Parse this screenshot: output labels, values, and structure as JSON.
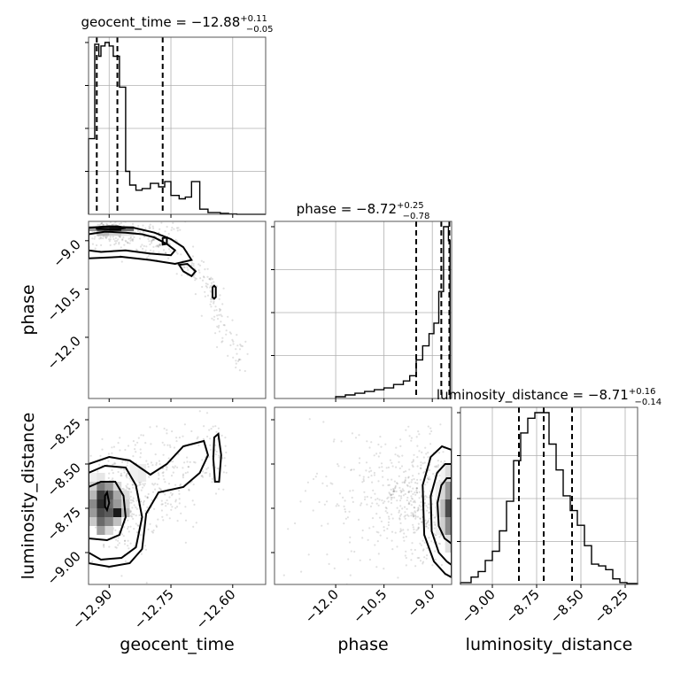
{
  "chart_data": {
    "type": "corner",
    "parameters": [
      "geocent_time",
      "phase",
      "luminosity_distance"
    ],
    "axis_labels": {
      "geocent_time": "geocent_time",
      "phase": "phase",
      "luminosity_distance": "luminosity_distance"
    },
    "ranges": {
      "geocent_time": [
        -12.95,
        -12.52
      ],
      "phase": [
        -13.9,
        -8.4
      ],
      "luminosity_distance": [
        -9.18,
        -8.18
      ]
    },
    "ticks": {
      "geocent_time": {
        "values": [
          -12.9,
          -12.75,
          -12.6
        ],
        "labels": [
          "−12.90",
          "−12.75",
          "−12.60"
        ]
      },
      "phase": {
        "values": [
          -12.0,
          -10.5,
          -9.0
        ],
        "labels": [
          "−12.0",
          "−10.5",
          "−9.0"
        ]
      },
      "luminosity_distance": {
        "values": [
          -9.0,
          -8.75,
          -8.5,
          -8.25
        ],
        "labels": [
          "−9.00",
          "−8.75",
          "−8.50",
          "−8.25"
        ]
      }
    },
    "titles": [
      {
        "param": "geocent_time",
        "main": "geocent_time = −12.88",
        "plus": "+0.11",
        "minus": "−0.05"
      },
      {
        "param": "phase",
        "main": "phase = −8.72",
        "plus": "+0.25",
        "minus": "−0.78"
      },
      {
        "param": "luminosity_distance",
        "main": "luminosity_distance = −8.71",
        "plus": "+0.16",
        "minus": "−0.14"
      }
    ],
    "quantiles": {
      "geocent_time": [
        -12.93,
        -12.88,
        -12.77
      ],
      "phase": [
        -9.5,
        -8.72,
        -8.47
      ],
      "luminosity_distance": [
        -8.85,
        -8.71,
        -8.55
      ]
    },
    "histograms": {
      "geocent_time": {
        "edges": [
          -12.95,
          -12.935,
          -12.925,
          -12.92,
          -12.91,
          -12.9,
          -12.89,
          -12.875,
          -12.86,
          -12.85,
          -12.835,
          -12.82,
          -12.8,
          -12.78,
          -12.765,
          -12.75,
          -12.73,
          -12.715,
          -12.7,
          -12.68,
          -12.66,
          -12.645,
          -12.63,
          -12.61,
          -12.59,
          -12.52
        ],
        "counts": [
          0.44,
          0.99,
          0.92,
          0.98,
          1.0,
          0.98,
          0.92,
          0.74,
          0.25,
          0.17,
          0.14,
          0.15,
          0.18,
          0.16,
          0.19,
          0.11,
          0.09,
          0.1,
          0.19,
          0.03,
          0.01,
          0.01,
          0.005,
          0.002,
          0.0
        ]
      },
      "phase": {
        "edges": [
          -12.0,
          -11.7,
          -11.4,
          -11.1,
          -10.8,
          -10.5,
          -10.2,
          -9.9,
          -9.7,
          -9.5,
          -9.3,
          -9.1,
          -8.95,
          -8.8,
          -8.65,
          -8.55,
          -8.5,
          -8.45
        ],
        "counts": [
          0.01,
          0.02,
          0.03,
          0.04,
          0.05,
          0.06,
          0.08,
          0.1,
          0.13,
          0.22,
          0.3,
          0.37,
          0.43,
          0.61,
          0.98,
          0.98,
          0.9
        ]
      },
      "luminosity_distance": {
        "edges": [
          -9.18,
          -9.12,
          -9.08,
          -9.04,
          -9.0,
          -8.96,
          -8.92,
          -8.88,
          -8.84,
          -8.8,
          -8.76,
          -8.72,
          -8.68,
          -8.64,
          -8.6,
          -8.56,
          -8.52,
          -8.48,
          -8.44,
          -8.4,
          -8.36,
          -8.32,
          -8.28,
          -8.24,
          -8.18
        ],
        "counts": [
          0.01,
          0.04,
          0.07,
          0.13,
          0.18,
          0.29,
          0.45,
          0.67,
          0.82,
          0.9,
          0.93,
          0.93,
          0.76,
          0.62,
          0.48,
          0.4,
          0.32,
          0.21,
          0.11,
          0.1,
          0.08,
          0.03,
          0.01,
          0.005
        ]
      }
    },
    "grid": true,
    "panels": {
      "phase_vs_geocent_time": {
        "x": "geocent_time",
        "y": "phase",
        "contours": [
          [
            [
              -12.95,
              -8.8
            ],
            [
              -12.91,
              -8.72
            ],
            [
              -12.86,
              -8.75
            ],
            [
              -12.82,
              -8.8
            ],
            [
              -12.79,
              -8.9
            ],
            [
              -12.76,
              -9.1
            ],
            [
              -12.74,
              -9.3
            ],
            [
              -12.75,
              -9.45
            ],
            [
              -12.8,
              -9.4
            ],
            [
              -12.86,
              -9.3
            ],
            [
              -12.92,
              -9.35
            ],
            [
              -12.95,
              -9.3
            ]
          ],
          [
            [
              -12.95,
              -8.6
            ],
            [
              -12.9,
              -8.55
            ],
            [
              -12.84,
              -8.6
            ],
            [
              -12.79,
              -8.75
            ],
            [
              -12.75,
              -8.95
            ],
            [
              -12.72,
              -9.2
            ],
            [
              -12.7,
              -9.6
            ],
            [
              -12.74,
              -9.72
            ],
            [
              -12.8,
              -9.6
            ],
            [
              -12.87,
              -9.5
            ],
            [
              -12.95,
              -9.55
            ]
          ],
          [
            [
              -12.73,
              -9.75
            ],
            [
              -12.71,
              -9.72
            ],
            [
              -12.69,
              -9.95
            ],
            [
              -12.7,
              -10.1
            ],
            [
              -12.72,
              -9.95
            ]
          ],
          [
            [
              -12.77,
              -8.92
            ],
            [
              -12.76,
              -8.9
            ],
            [
              -12.76,
              -9.1
            ],
            [
              -12.77,
              -9.12
            ]
          ],
          [
            [
              -12.649,
              -10.45
            ],
            [
              -12.645,
              -10.4
            ],
            [
              -12.641,
              -10.45
            ],
            [
              -12.641,
              -10.75
            ],
            [
              -12.645,
              -10.8
            ],
            [
              -12.649,
              -10.75
            ]
          ],
          [
            [
              -12.93,
              -8.58
            ],
            [
              -12.88,
              -8.55
            ],
            [
              -12.86,
              -8.6
            ],
            [
              -12.88,
              -8.65
            ],
            [
              -12.93,
              -8.63
            ]
          ]
        ]
      },
      "luminosity_distance_vs_geocent_time": {
        "x": "geocent_time",
        "y": "luminosity_distance",
        "contours": [
          [
            [
              -12.95,
              -8.63
            ],
            [
              -12.92,
              -8.6
            ],
            [
              -12.885,
              -8.6
            ],
            [
              -12.865,
              -8.68
            ],
            [
              -12.86,
              -8.8
            ],
            [
              -12.875,
              -8.9
            ],
            [
              -12.905,
              -8.93
            ],
            [
              -12.95,
              -8.92
            ]
          ],
          [
            [
              -12.95,
              -8.55
            ],
            [
              -12.91,
              -8.51
            ],
            [
              -12.86,
              -8.52
            ],
            [
              -12.835,
              -8.62
            ],
            [
              -12.82,
              -8.8
            ],
            [
              -12.835,
              -8.97
            ],
            [
              -12.87,
              -9.03
            ],
            [
              -12.92,
              -9.04
            ],
            [
              -12.95,
              -9.0
            ]
          ],
          [
            [
              -12.95,
              -8.5
            ],
            [
              -12.9,
              -8.46
            ],
            [
              -12.85,
              -8.48
            ],
            [
              -12.8,
              -8.56
            ],
            [
              -12.76,
              -8.5
            ],
            [
              -12.72,
              -8.4
            ],
            [
              -12.67,
              -8.37
            ],
            [
              -12.66,
              -8.45
            ],
            [
              -12.68,
              -8.55
            ],
            [
              -12.72,
              -8.63
            ],
            [
              -12.78,
              -8.66
            ],
            [
              -12.81,
              -8.78
            ],
            [
              -12.82,
              -8.98
            ],
            [
              -12.85,
              -9.06
            ],
            [
              -12.9,
              -9.08
            ],
            [
              -12.95,
              -9.06
            ]
          ],
          [
            [
              -12.645,
              -8.35
            ],
            [
              -12.635,
              -8.33
            ],
            [
              -12.628,
              -8.45
            ],
            [
              -12.633,
              -8.6
            ],
            [
              -12.643,
              -8.6
            ],
            [
              -12.647,
              -8.47
            ]
          ],
          [
            [
              -12.91,
              -8.68
            ],
            [
              -12.905,
              -8.66
            ],
            [
              -12.9,
              -8.72
            ],
            [
              -12.905,
              -8.76
            ],
            [
              -12.91,
              -8.74
            ]
          ]
        ]
      },
      "luminosity_distance_vs_phase": {
        "x": "phase",
        "y": "luminosity_distance",
        "contours": [
          [
            [
              -8.4,
              -8.58
            ],
            [
              -8.55,
              -8.58
            ],
            [
              -8.72,
              -8.62
            ],
            [
              -8.84,
              -8.72
            ],
            [
              -8.8,
              -8.85
            ],
            [
              -8.62,
              -8.92
            ],
            [
              -8.4,
              -8.95
            ]
          ],
          [
            [
              -8.4,
              -8.5
            ],
            [
              -8.6,
              -8.5
            ],
            [
              -8.85,
              -8.55
            ],
            [
              -9.05,
              -8.68
            ],
            [
              -9.02,
              -8.88
            ],
            [
              -8.8,
              -9.0
            ],
            [
              -8.55,
              -9.05
            ],
            [
              -8.4,
              -9.07
            ]
          ],
          [
            [
              -8.4,
              -8.42
            ],
            [
              -8.7,
              -8.4
            ],
            [
              -9.05,
              -8.46
            ],
            [
              -9.3,
              -8.62
            ],
            [
              -9.25,
              -8.9
            ],
            [
              -8.95,
              -9.05
            ],
            [
              -8.6,
              -9.12
            ],
            [
              -8.4,
              -9.14
            ]
          ]
        ]
      }
    }
  }
}
